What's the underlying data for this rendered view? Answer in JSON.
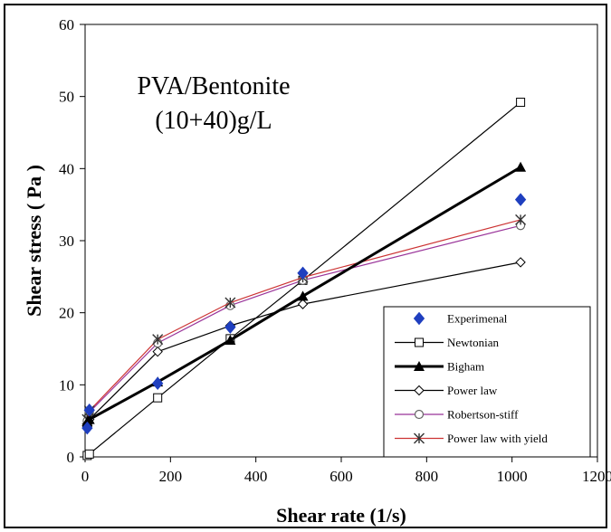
{
  "chart_data": {
    "type": "line",
    "title": "",
    "annotation": [
      "PVA/Bentonite",
      "(10+40)g/L"
    ],
    "xlabel": "Shear rate (1/s)",
    "ylabel": "Shear stress ( Pa )",
    "xlim": [
      0,
      1200
    ],
    "ylim": [
      0,
      60
    ],
    "xticks": [
      "0",
      "200",
      "400",
      "600",
      "800",
      "1000",
      "1200"
    ],
    "yticks": [
      "0",
      "10",
      "20",
      "30",
      "40",
      "50",
      "60"
    ],
    "grid": false,
    "legend_position": "bottom-right",
    "series": [
      {
        "name": "Experimenal",
        "style": "marker-only",
        "marker": "diamond-filled",
        "color": "#1f3fbf",
        "x": [
          5,
          10,
          170,
          340,
          510,
          1020
        ],
        "y": [
          4,
          6.5,
          10.2,
          18,
          25.5,
          35.7
        ]
      },
      {
        "name": "Newtonian",
        "style": "line",
        "marker": "square-open",
        "color": "#000000",
        "x": [
          5,
          10,
          170,
          340,
          510,
          1020
        ],
        "y": [
          0.2,
          0.4,
          8.2,
          16.4,
          24.5,
          49.2
        ]
      },
      {
        "name": "Bigham",
        "style": "thick-line",
        "marker": "triangle-filled",
        "color": "#000000",
        "x": [
          5,
          10,
          170,
          340,
          510,
          1020
        ],
        "y": [
          4.9,
          5.2,
          10.4,
          16.2,
          22.3,
          40.2
        ]
      },
      {
        "name": "Power law",
        "style": "line",
        "marker": "diamond-open",
        "color": "#000000",
        "x": [
          5,
          10,
          170,
          340,
          510,
          1020
        ],
        "y": [
          4.2,
          5.2,
          14.6,
          18.2,
          21.2,
          27
        ]
      },
      {
        "name": "Robertson-stiff",
        "style": "line",
        "marker": "circle-open",
        "color": "#993399",
        "x": [
          5,
          10,
          170,
          340,
          510,
          1020
        ],
        "y": [
          5,
          6.2,
          15.8,
          21,
          24.5,
          32.1
        ]
      },
      {
        "name": "Power law with yield",
        "style": "line",
        "marker": "star",
        "color": "#cc3333",
        "x": [
          5,
          10,
          170,
          340,
          510,
          1020
        ],
        "y": [
          5.2,
          6.4,
          16.3,
          21.4,
          24.9,
          32.9
        ]
      }
    ]
  }
}
